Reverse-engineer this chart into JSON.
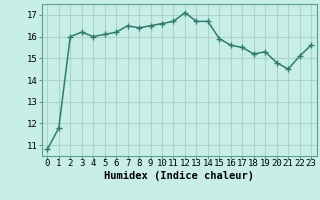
{
  "x": [
    0,
    1,
    2,
    3,
    4,
    5,
    6,
    7,
    8,
    9,
    10,
    11,
    12,
    13,
    14,
    15,
    16,
    17,
    18,
    19,
    20,
    21,
    22,
    23
  ],
  "y": [
    10.8,
    11.8,
    16.0,
    16.2,
    16.0,
    16.1,
    16.2,
    16.5,
    16.4,
    16.5,
    16.6,
    16.7,
    17.1,
    16.7,
    16.7,
    15.9,
    15.6,
    15.5,
    15.2,
    15.3,
    14.8,
    14.5,
    15.1,
    15.6
  ],
  "line_color": "#2e7d6e",
  "bg_color": "#c8eee8",
  "grid_color": "#aad4cc",
  "xlabel": "Humidex (Indice chaleur)",
  "ylabel_ticks": [
    11,
    12,
    13,
    14,
    15,
    16,
    17
  ],
  "ylim": [
    10.5,
    17.5
  ],
  "xlim": [
    -0.5,
    23.5
  ],
  "marker": "+",
  "marker_size": 4.0,
  "line_width": 1.1,
  "xlabel_fontsize": 7.5,
  "tick_fontsize": 6.5
}
